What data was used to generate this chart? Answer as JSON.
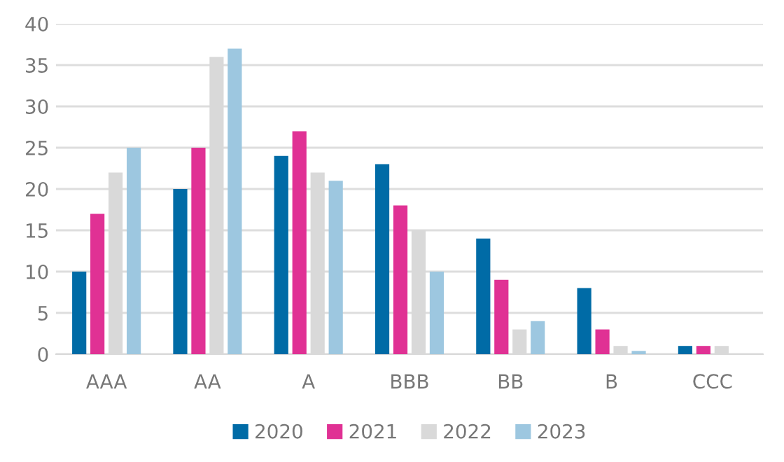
{
  "chart_data": {
    "type": "bar",
    "categories": [
      "AAA",
      "AA",
      "A",
      "BBB",
      "BB",
      "B",
      "CCC"
    ],
    "series": [
      {
        "name": "2020",
        "color": "#006ba6",
        "values": [
          10,
          20,
          24,
          23,
          14,
          8,
          1
        ]
      },
      {
        "name": "2021",
        "color": "#e03194",
        "values": [
          17,
          25,
          27,
          18,
          9,
          3,
          1
        ]
      },
      {
        "name": "2022",
        "color": "#d9d9d9",
        "values": [
          22,
          36,
          22,
          15,
          3,
          1,
          1
        ]
      },
      {
        "name": "2023",
        "color": "#9dc7e0",
        "values": [
          25,
          37,
          21,
          10,
          4,
          0.4,
          0
        ]
      }
    ],
    "ylim": [
      0,
      40
    ],
    "yticks": [
      0,
      5,
      10,
      15,
      20,
      25,
      30,
      35,
      40
    ],
    "grid": "y",
    "legend": "bottom"
  }
}
